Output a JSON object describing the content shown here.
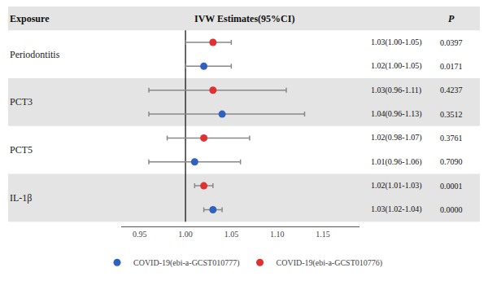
{
  "chart_data": {
    "type": "forest",
    "title": "IVW Estimates(95%CI)",
    "exposure_header": "Exposure",
    "p_header": "P",
    "categories": [
      "Periodontitis",
      "PCT3",
      "PCT5",
      "IL-1β"
    ],
    "series": [
      {
        "name": "COVID-19(ebi-a-GCST010776)",
        "color": "#e03030",
        "values": [
          1.03,
          1.03,
          1.02,
          1.02
        ],
        "ci_lo": [
          1.0,
          0.96,
          0.98,
          1.01
        ],
        "ci_hi": [
          1.05,
          1.11,
          1.07,
          1.03
        ],
        "value_labels": [
          "1.03(1.00-1.05)",
          "1.03(0.96-1.11)",
          "1.02(0.98-1.07)",
          "1.02(1.01-1.03)"
        ],
        "p_values": [
          "0.0397",
          "0.4237",
          "0.3761",
          "0.0001"
        ]
      },
      {
        "name": "COVID-19(ebi-a-GCST010777)",
        "color": "#3060c0",
        "values": [
          1.02,
          1.04,
          1.01,
          1.03
        ],
        "ci_lo": [
          1.0,
          0.96,
          0.96,
          1.02
        ],
        "ci_hi": [
          1.05,
          1.13,
          1.06,
          1.04
        ],
        "value_labels": [
          "1.02(1.00-1.05)",
          "1.04(0.96-1.13)",
          "1.01(0.96-1.06)",
          "1.03(1.02-1.04)"
        ],
        "p_values": [
          "0.0171",
          "0.3512",
          "0.7090",
          "0.0000"
        ]
      }
    ],
    "xlim": [
      0.93,
      1.19
    ],
    "xticks": [
      0.95,
      {
        "value": 1,
        "label": "1.00"
      },
      1.05,
      {
        "value": 1.1,
        "label": "1.10"
      },
      1.15
    ],
    "reference_line": 1,
    "grid": false,
    "legend": "bottom",
    "tick_labels": "x",
    "data_labels": true
  }
}
